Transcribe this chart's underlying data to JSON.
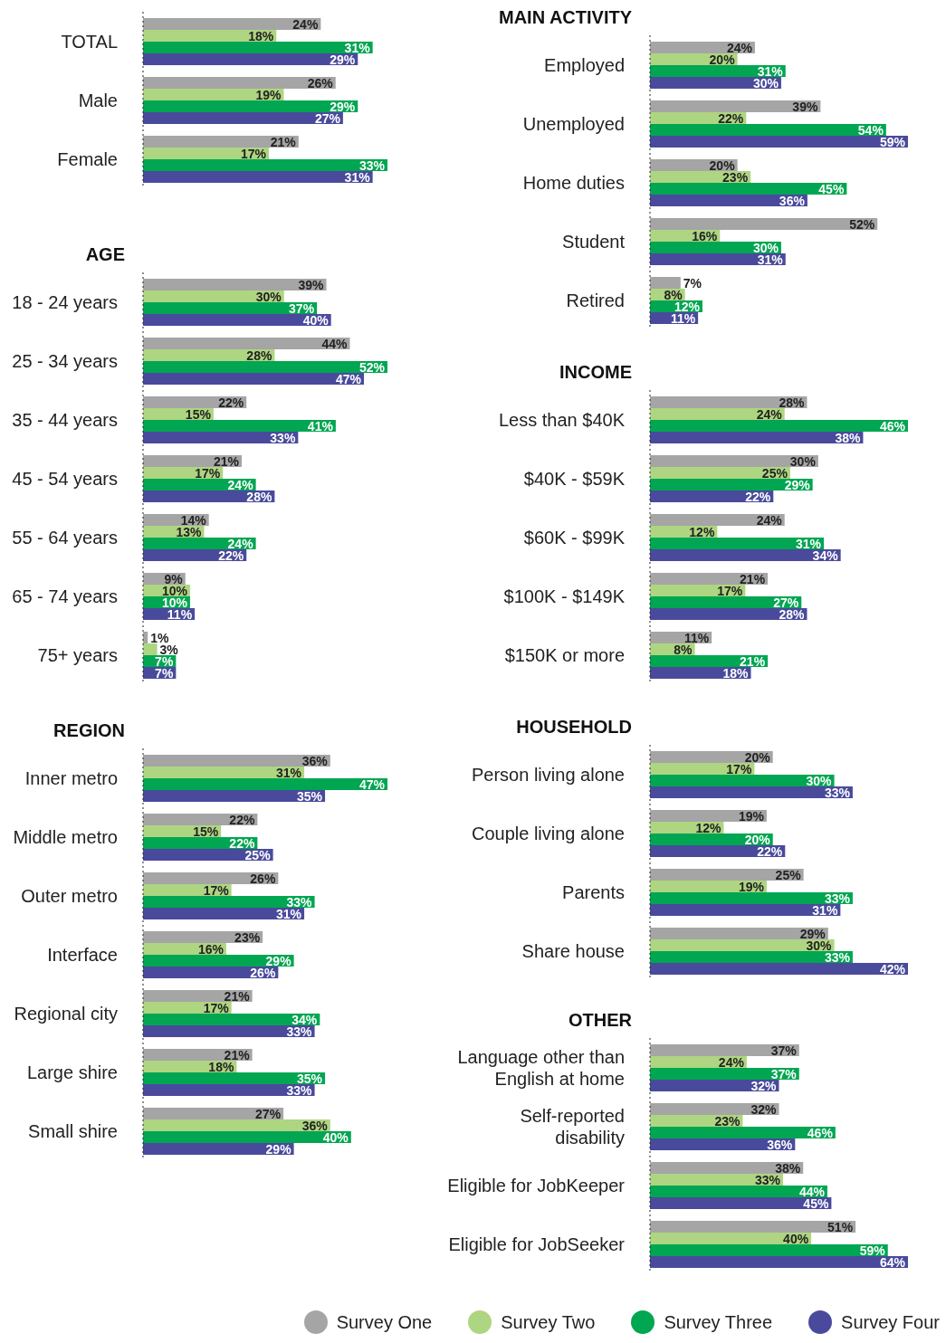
{
  "chart_data": [
    {
      "type": "bar",
      "orientation": "horizontal",
      "legend": "bottom",
      "categories": [
        "TOTAL",
        "Male",
        "Female"
      ],
      "series": [
        {
          "name": "Survey One",
          "color": "#a5a5a5",
          "values": [
            24,
            26,
            21
          ],
          "value_labels": [
            "24%",
            "26%",
            "21%"
          ]
        },
        {
          "name": "Survey Two",
          "color": "#aed581",
          "values": [
            18,
            19,
            17
          ],
          "value_labels": [
            "18%",
            "19%",
            "17%"
          ]
        },
        {
          "name": "Survey Three",
          "color": "#00a651",
          "values": [
            31,
            29,
            33
          ],
          "value_labels": [
            "31%",
            "29%",
            "33%"
          ]
        },
        {
          "name": "Survey Four",
          "color": "#4a4a9c",
          "values": [
            29,
            27,
            31
          ],
          "value_labels": [
            "29%",
            "27%",
            "31%"
          ]
        }
      ]
    },
    {
      "type": "bar",
      "orientation": "horizontal",
      "legend": "bottom",
      "title": "AGE",
      "categories": [
        "18 - 24 years",
        "25 - 34 years",
        "35 - 44 years",
        "45 - 54 years",
        "55 - 64 years",
        "65 - 74 years",
        "75+ years"
      ],
      "series": [
        {
          "name": "Survey One",
          "color": "#a5a5a5",
          "values": [
            39,
            44,
            22,
            21,
            14,
            9,
            1
          ],
          "value_labels": [
            "39%",
            "44%",
            "22%",
            "21%",
            "14%",
            "9%",
            "1%"
          ]
        },
        {
          "name": "Survey Two",
          "color": "#aed581",
          "values": [
            30,
            28,
            15,
            17,
            13,
            10,
            3
          ],
          "value_labels": [
            "30%",
            "28%",
            "15%",
            "17%",
            "13%",
            "10%",
            "3%"
          ]
        },
        {
          "name": "Survey Three",
          "color": "#00a651",
          "values": [
            37,
            52,
            41,
            24,
            24,
            10,
            7
          ],
          "value_labels": [
            "37%",
            "52%",
            "41%",
            "24%",
            "24%",
            "10%",
            "7%"
          ]
        },
        {
          "name": "Survey Four",
          "color": "#4a4a9c",
          "values": [
            40,
            47,
            33,
            28,
            22,
            11,
            7
          ],
          "value_labels": [
            "40%",
            "47%",
            "33%",
            "28%",
            "22%",
            "11%",
            "7%"
          ]
        }
      ]
    },
    {
      "type": "bar",
      "orientation": "horizontal",
      "legend": "bottom",
      "title": "REGION",
      "categories": [
        "Inner metro",
        "Middle metro",
        "Outer metro",
        "Interface",
        "Regional city",
        "Large shire",
        "Small shire"
      ],
      "series": [
        {
          "name": "Survey One",
          "color": "#a5a5a5",
          "values": [
            36,
            22,
            26,
            23,
            21,
            21,
            27
          ],
          "value_labels": [
            "36%",
            "22%",
            "26%",
            "23%",
            "21%",
            "21%",
            "27%"
          ]
        },
        {
          "name": "Survey Two",
          "color": "#aed581",
          "values": [
            31,
            15,
            17,
            16,
            17,
            18,
            36
          ],
          "value_labels": [
            "31%",
            "15%",
            "17%",
            "16%",
            "17%",
            "18%",
            "36%"
          ]
        },
        {
          "name": "Survey Three",
          "color": "#00a651",
          "values": [
            47,
            22,
            33,
            29,
            34,
            35,
            40
          ],
          "value_labels": [
            "47%",
            "22%",
            "33%",
            "29%",
            "34%",
            "35%",
            "40%"
          ]
        },
        {
          "name": "Survey Four",
          "color": "#4a4a9c",
          "values": [
            35,
            25,
            31,
            26,
            33,
            33,
            29
          ],
          "value_labels": [
            "35%",
            "25%",
            "31%",
            "26%",
            "33%",
            "33%",
            "29%"
          ]
        }
      ]
    },
    {
      "type": "bar",
      "orientation": "horizontal",
      "legend": "bottom",
      "title": "MAIN ACTIVITY",
      "categories": [
        "Employed",
        "Unemployed",
        "Home duties",
        "Student",
        "Retired"
      ],
      "series": [
        {
          "name": "Survey One",
          "color": "#a5a5a5",
          "values": [
            24,
            39,
            20,
            52,
            7
          ],
          "value_labels": [
            "24%",
            "39%",
            "20%",
            "52%",
            "7%"
          ]
        },
        {
          "name": "Survey Two",
          "color": "#aed581",
          "values": [
            20,
            22,
            23,
            16,
            8
          ],
          "value_labels": [
            "20%",
            "22%",
            "23%",
            "16%",
            "8%"
          ]
        },
        {
          "name": "Survey Three",
          "color": "#00a651",
          "values": [
            31,
            54,
            45,
            30,
            12
          ],
          "value_labels": [
            "31%",
            "54%",
            "45%",
            "30%",
            "12%"
          ]
        },
        {
          "name": "Survey Four",
          "color": "#4a4a9c",
          "values": [
            30,
            59,
            36,
            31,
            11
          ],
          "value_labels": [
            "30%",
            "59%",
            "36%",
            "31%",
            "11%"
          ]
        }
      ]
    },
    {
      "type": "bar",
      "orientation": "horizontal",
      "legend": "bottom",
      "title": "INCOME",
      "categories": [
        "Less than $40K",
        "$40K - $59K",
        "$60K - $99K",
        "$100K - $149K",
        "$150K or more"
      ],
      "series": [
        {
          "name": "Survey One",
          "color": "#a5a5a5",
          "values": [
            28,
            30,
            24,
            21,
            11
          ],
          "value_labels": [
            "28%",
            "30%",
            "24%",
            "21%",
            "11%"
          ]
        },
        {
          "name": "Survey Two",
          "color": "#aed581",
          "values": [
            24,
            25,
            12,
            17,
            8
          ],
          "value_labels": [
            "24%",
            "25%",
            "12%",
            "17%",
            "8%"
          ]
        },
        {
          "name": "Survey Three",
          "color": "#00a651",
          "values": [
            46,
            29,
            31,
            27,
            21
          ],
          "value_labels": [
            "46%",
            "29%",
            "31%",
            "27%",
            "21%"
          ]
        },
        {
          "name": "Survey Four",
          "color": "#4a4a9c",
          "values": [
            38,
            22,
            34,
            28,
            18
          ],
          "value_labels": [
            "38%",
            "22%",
            "34%",
            "28%",
            "18%"
          ]
        }
      ]
    },
    {
      "type": "bar",
      "orientation": "horizontal",
      "legend": "bottom",
      "title": "HOUSEHOLD",
      "categories": [
        "Person living alone",
        "Couple living alone",
        "Parents",
        "Share house"
      ],
      "series": [
        {
          "name": "Survey One",
          "color": "#a5a5a5",
          "values": [
            20,
            19,
            25,
            29
          ],
          "value_labels": [
            "20%",
            "19%",
            "25%",
            "29%"
          ]
        },
        {
          "name": "Survey Two",
          "color": "#aed581",
          "values": [
            17,
            12,
            19,
            30
          ],
          "value_labels": [
            "17%",
            "12%",
            "19%",
            "30%"
          ]
        },
        {
          "name": "Survey Three",
          "color": "#00a651",
          "values": [
            30,
            20,
            33,
            33
          ],
          "value_labels": [
            "30%",
            "20%",
            "33%",
            "33%"
          ]
        },
        {
          "name": "Survey Four",
          "color": "#4a4a9c",
          "values": [
            33,
            22,
            31,
            42
          ],
          "value_labels": [
            "33%",
            "22%",
            "31%",
            "42%"
          ]
        }
      ]
    },
    {
      "type": "bar",
      "orientation": "horizontal",
      "legend": "bottom",
      "title": "OTHER",
      "categories": [
        "Language other than English at home",
        "Self-reported disability",
        "Eligible for JobKeeper",
        "Eligible for JobSeeker"
      ],
      "series": [
        {
          "name": "Survey One",
          "color": "#a5a5a5",
          "values": [
            37,
            32,
            38,
            51
          ],
          "value_labels": [
            "37%",
            "32%",
            "38%",
            "51%"
          ]
        },
        {
          "name": "Survey Two",
          "color": "#aed581",
          "values": [
            24,
            23,
            33,
            40
          ],
          "value_labels": [
            "24%",
            "23%",
            "33%",
            "40%"
          ]
        },
        {
          "name": "Survey Three",
          "color": "#00a651",
          "values": [
            37,
            46,
            44,
            59
          ],
          "value_labels": [
            "37%",
            "46%",
            "44%",
            "59%"
          ]
        },
        {
          "name": "Survey Four",
          "color": "#4a4a9c",
          "values": [
            32,
            36,
            45,
            64
          ],
          "value_labels": [
            "32%",
            "36%",
            "45%",
            "64%"
          ]
        }
      ]
    }
  ]
}
